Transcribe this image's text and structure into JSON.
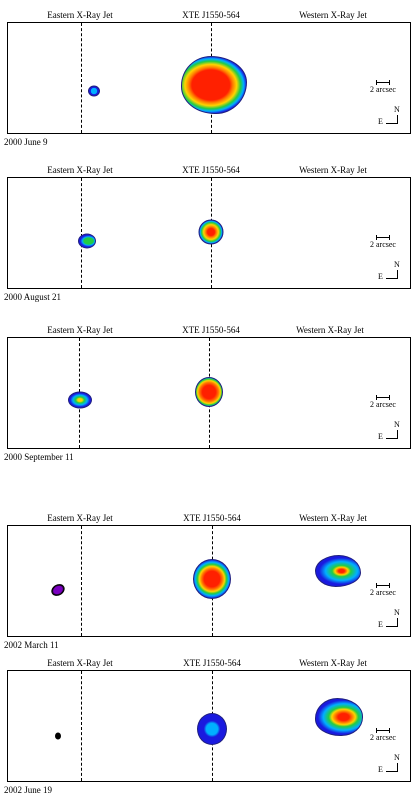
{
  "labels": {
    "eastern": "Eastern X-Ray Jet",
    "source": "XTE J1550-564",
    "western": "Western X-Ray Jet"
  },
  "scale_label": "2 arcsec",
  "compass": {
    "north": "N",
    "east": "E"
  },
  "colors": {
    "outer": "#1a1adf",
    "mid1": "#00b0ff",
    "mid2": "#22cc44",
    "mid3": "#ffd400",
    "mid4": "#ff7a00",
    "core": "#ff2000",
    "dark": "#000000",
    "violet": "#7a00c0"
  },
  "panels": [
    {
      "date": "2000 June 9"
    },
    {
      "date": "2000 August 21"
    },
    {
      "date": "2000 September 11"
    },
    {
      "date": "2002 March 11"
    },
    {
      "date": "2002 June 19"
    }
  ]
}
